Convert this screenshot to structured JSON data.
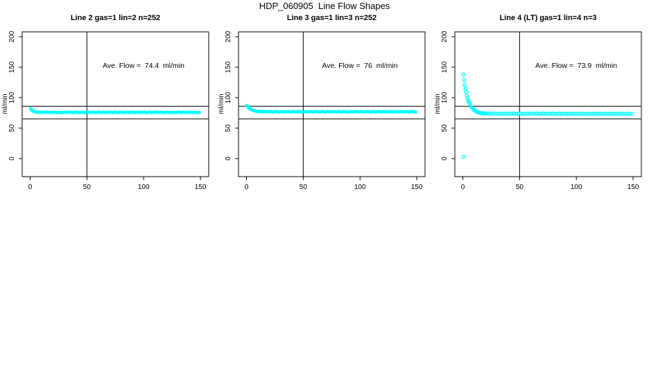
{
  "title": "HDP_060905  Line Flow Shapes",
  "colors": {
    "points": "#00FFFF",
    "axis": "#000000",
    "background": "#FFFFFF"
  },
  "chart_data": [
    {
      "type": "scatter",
      "title": "Line 2 gas=1 lin=2 n=252",
      "annotation": "Ave. Flow =  74.4  ml/min",
      "ave_flow_ml_min": 74.4,
      "ylabel": "ml/min",
      "xlabel": "",
      "xlim": [
        0,
        155
      ],
      "ylim": [
        0,
        200
      ],
      "xticks": [
        0,
        50,
        100,
        150
      ],
      "yticks": [
        0,
        50,
        100,
        150,
        200
      ],
      "hlines": [
        86,
        65
      ],
      "vline": 50,
      "marker": "filled",
      "legend": "none",
      "grid": false,
      "x": [
        0.5,
        1,
        1.5,
        2,
        3,
        4,
        5,
        6,
        7,
        8,
        9,
        10,
        11,
        13,
        15,
        17,
        19,
        21,
        23,
        25,
        27,
        29,
        31,
        33,
        35,
        37,
        39,
        41,
        43,
        45,
        47,
        49,
        51,
        53,
        55,
        57,
        59,
        61,
        63,
        65,
        67,
        69,
        71,
        73,
        75,
        77,
        79,
        81,
        83,
        85,
        87,
        89,
        91,
        93,
        95,
        97,
        99,
        101,
        103,
        105,
        107,
        109,
        111,
        113,
        115,
        117,
        119,
        121,
        123,
        125,
        127,
        129,
        131,
        133,
        135,
        137,
        139,
        141,
        143,
        145,
        147,
        149
      ],
      "y": [
        81.8,
        80.6,
        79.6,
        78.8,
        77.7,
        77.0,
        76.6,
        76.3,
        76.1,
        76.0,
        75.9,
        75.9,
        76.1,
        75.6,
        76.3,
        75.4,
        75.8,
        76.2,
        75.3,
        76.0,
        75.5,
        75.9,
        76.1,
        75.6,
        76.3,
        75.4,
        75.8,
        76.2,
        75.3,
        76.0,
        75.5,
        75.9,
        76.1,
        75.6,
        76.3,
        75.4,
        75.8,
        76.2,
        75.3,
        76.0,
        75.5,
        75.9,
        76.1,
        75.6,
        76.3,
        75.4,
        75.8,
        76.2,
        75.3,
        76.0,
        75.5,
        75.9,
        76.1,
        75.6,
        76.3,
        75.4,
        75.8,
        76.2,
        75.3,
        76.0,
        75.5,
        75.9,
        76.1,
        75.6,
        76.3,
        75.4,
        75.8,
        76.2,
        75.3,
        76.0,
        75.5,
        75.9,
        76.1,
        75.6,
        76.3,
        75.4,
        75.8,
        76.2,
        75.3,
        76.0,
        75.5,
        75.9
      ]
    },
    {
      "type": "scatter",
      "title": "Line 3 gas=1 lin=3 n=252",
      "annotation": "Ave. Flow =  76  ml/min",
      "ave_flow_ml_min": 76,
      "ylabel": "ml/min",
      "xlabel": "",
      "xlim": [
        0,
        155
      ],
      "ylim": [
        0,
        200
      ],
      "xticks": [
        0,
        50,
        100,
        150
      ],
      "yticks": [
        0,
        50,
        100,
        150,
        200
      ],
      "hlines": [
        86,
        65
      ],
      "vline": 50,
      "marker": "filled",
      "legend": "none",
      "grid": false,
      "x": [
        0.5,
        1,
        1.5,
        2,
        3,
        4,
        5,
        6,
        7,
        8,
        9,
        10,
        11,
        12,
        13,
        14,
        15,
        16,
        17,
        19,
        21,
        23,
        25,
        27,
        29,
        31,
        33,
        35,
        37,
        39,
        41,
        43,
        45,
        47,
        49,
        51,
        53,
        55,
        57,
        59,
        61,
        63,
        65,
        67,
        69,
        71,
        73,
        75,
        77,
        79,
        81,
        83,
        85,
        87,
        89,
        91,
        93,
        95,
        97,
        99,
        101,
        103,
        105,
        107,
        109,
        111,
        113,
        115,
        117,
        119,
        121,
        123,
        125,
        127,
        129,
        131,
        133,
        135,
        137,
        139,
        141,
        143,
        145,
        147,
        149
      ],
      "y": [
        87.2,
        85.8,
        84.7,
        83.6,
        81.9,
        80.6,
        79.7,
        79.0,
        78.4,
        78.0,
        77.7,
        77.5,
        77.3,
        77.2,
        77.1,
        77.0,
        76.9,
        76.9,
        77.1,
        76.6,
        77.3,
        76.4,
        76.8,
        77.2,
        76.3,
        77.0,
        76.5,
        76.9,
        77.1,
        76.6,
        77.3,
        76.4,
        76.8,
        77.2,
        76.3,
        77.0,
        76.5,
        76.9,
        77.1,
        76.6,
        77.3,
        76.4,
        76.8,
        77.2,
        76.3,
        77.0,
        76.5,
        76.9,
        77.1,
        76.6,
        77.3,
        76.4,
        76.8,
        77.2,
        76.3,
        77.0,
        76.5,
        76.9,
        77.1,
        76.6,
        77.3,
        76.4,
        76.8,
        77.2,
        76.3,
        77.0,
        76.5,
        76.9,
        77.1,
        76.6,
        77.3,
        76.4,
        76.8,
        77.2,
        76.3,
        77.0,
        76.5,
        76.9,
        77.1,
        76.6,
        77.3,
        76.4,
        76.8,
        77.2,
        76.3
      ]
    },
    {
      "type": "scatter",
      "title": "Line 4 (LT) gas=1 lin=4 n=3",
      "annotation": "Ave. Flow =  73.9  ml/min",
      "ave_flow_ml_min": 73.9,
      "ylabel": "ml/min",
      "xlabel": "",
      "xlim": [
        0,
        155
      ],
      "ylim": [
        0,
        200
      ],
      "xticks": [
        0,
        50,
        100,
        150
      ],
      "yticks": [
        0,
        50,
        100,
        150,
        200
      ],
      "hlines": [
        86,
        65
      ],
      "vline": 50,
      "marker": "open",
      "legend": "none",
      "grid": false,
      "x": [
        0.7,
        0.6,
        1.2,
        1.8,
        2.4,
        3,
        3.6,
        4.2,
        4.8,
        5.4,
        6,
        7,
        8,
        9,
        10,
        11,
        12,
        13,
        14,
        15,
        16,
        17,
        18,
        19,
        20,
        21,
        23,
        25,
        27,
        29,
        31,
        33,
        35,
        37,
        39,
        41,
        43,
        45,
        47,
        49,
        51,
        53,
        55,
        57,
        59,
        61,
        63,
        65,
        67,
        69,
        71,
        73,
        75,
        77,
        79,
        81,
        83,
        85,
        87,
        89,
        91,
        93,
        95,
        97,
        99,
        101,
        103,
        105,
        107,
        109,
        111,
        113,
        115,
        117,
        119,
        121,
        123,
        125,
        127,
        129,
        131,
        133,
        135,
        137,
        139,
        141,
        143,
        145,
        147,
        149
      ],
      "y": [
        3.0,
        138.1,
        129.1,
        121.3,
        114.7,
        108.9,
        103.9,
        99.6,
        95.9,
        92.7,
        90.2,
        86.5,
        83.6,
        81.4,
        79.7,
        78.3,
        77.2,
        76.4,
        75.7,
        75.2,
        74.9,
        74.6,
        74.4,
        74.2,
        74.1,
        74.0,
        73.5,
        74.2,
        73.6,
        73.8,
        74.1,
        73.4,
        73.9,
        73.7,
        74.0,
        74.0,
        73.5,
        74.2,
        73.6,
        73.8,
        74.1,
        73.4,
        73.9,
        73.7,
        74.0,
        74.0,
        73.5,
        74.2,
        73.6,
        73.8,
        74.1,
        73.4,
        73.9,
        73.7,
        74.0,
        73.8,
        73.3,
        74.0,
        73.4,
        73.6,
        73.9,
        73.2,
        73.7,
        73.5,
        73.8,
        73.8,
        73.3,
        74.0,
        73.4,
        73.6,
        73.9,
        73.2,
        73.7,
        73.5,
        73.8,
        73.8,
        73.3,
        74.0,
        73.4,
        73.6,
        73.9,
        73.2,
        73.7,
        73.5,
        73.8,
        73.8,
        73.3,
        74.0,
        73.4,
        73.6
      ]
    }
  ]
}
